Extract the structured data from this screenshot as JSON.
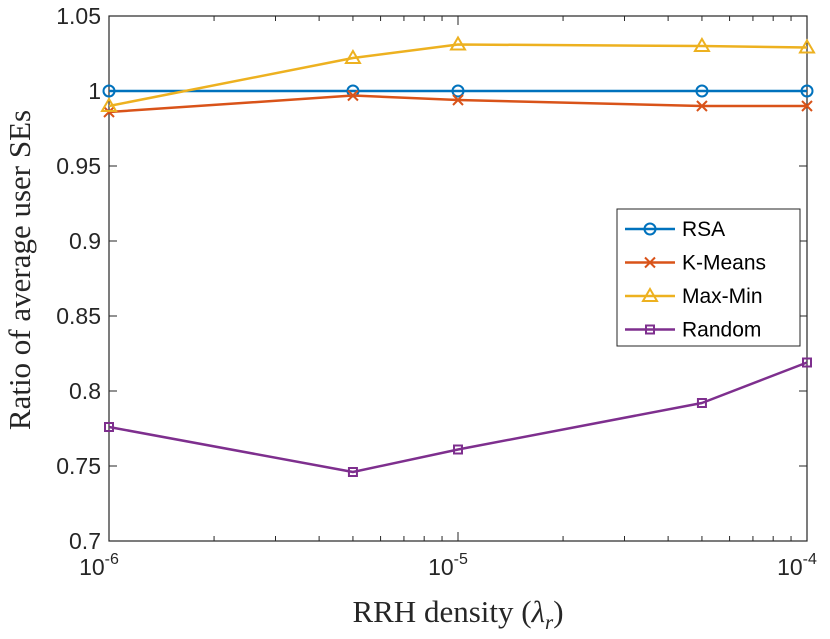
{
  "chart_data": {
    "type": "line",
    "x_scale": "log",
    "x": [
      1e-06,
      5e-06,
      1e-05,
      5e-05,
      0.0001
    ],
    "xlim": [
      1e-06,
      0.0001
    ],
    "ylim": [
      0.7,
      1.05
    ],
    "xlabel": "RRH density (",
    "xlabel_symbol": "λ",
    "xlabel_subscript": "r",
    "xlabel_close": ")",
    "ylabel": "Ratio of average user SEs",
    "x_ticks": [
      {
        "value": 1e-06,
        "base": "10",
        "exp": "-6"
      },
      {
        "value": 1e-05,
        "base": "10",
        "exp": "-5"
      },
      {
        "value": 0.0001,
        "base": "10",
        "exp": "-4"
      }
    ],
    "y_ticks": [
      {
        "value": 0.7,
        "label": "0.7"
      },
      {
        "value": 0.75,
        "label": "0.75"
      },
      {
        "value": 0.8,
        "label": "0.8"
      },
      {
        "value": 0.85,
        "label": "0.85"
      },
      {
        "value": 0.9,
        "label": "0.9"
      },
      {
        "value": 0.95,
        "label": "0.95"
      },
      {
        "value": 1.0,
        "label": "1"
      },
      {
        "value": 1.05,
        "label": "1.05"
      }
    ],
    "legend_position": "right",
    "series": [
      {
        "name": "RSA",
        "marker": "circle",
        "color": "#0072BD",
        "values": [
          1.0,
          1.0,
          1.0,
          1.0,
          1.0
        ]
      },
      {
        "name": "K-Means",
        "marker": "x",
        "color": "#D95319",
        "values": [
          0.986,
          0.997,
          0.994,
          0.99,
          0.99
        ]
      },
      {
        "name": "Max-Min",
        "marker": "triangle",
        "color": "#EDB120",
        "values": [
          0.99,
          1.022,
          1.031,
          1.03,
          1.029
        ]
      },
      {
        "name": "Random",
        "marker": "square",
        "color": "#7E2F8E",
        "values": [
          0.776,
          0.746,
          0.761,
          0.792,
          0.819
        ]
      }
    ]
  }
}
